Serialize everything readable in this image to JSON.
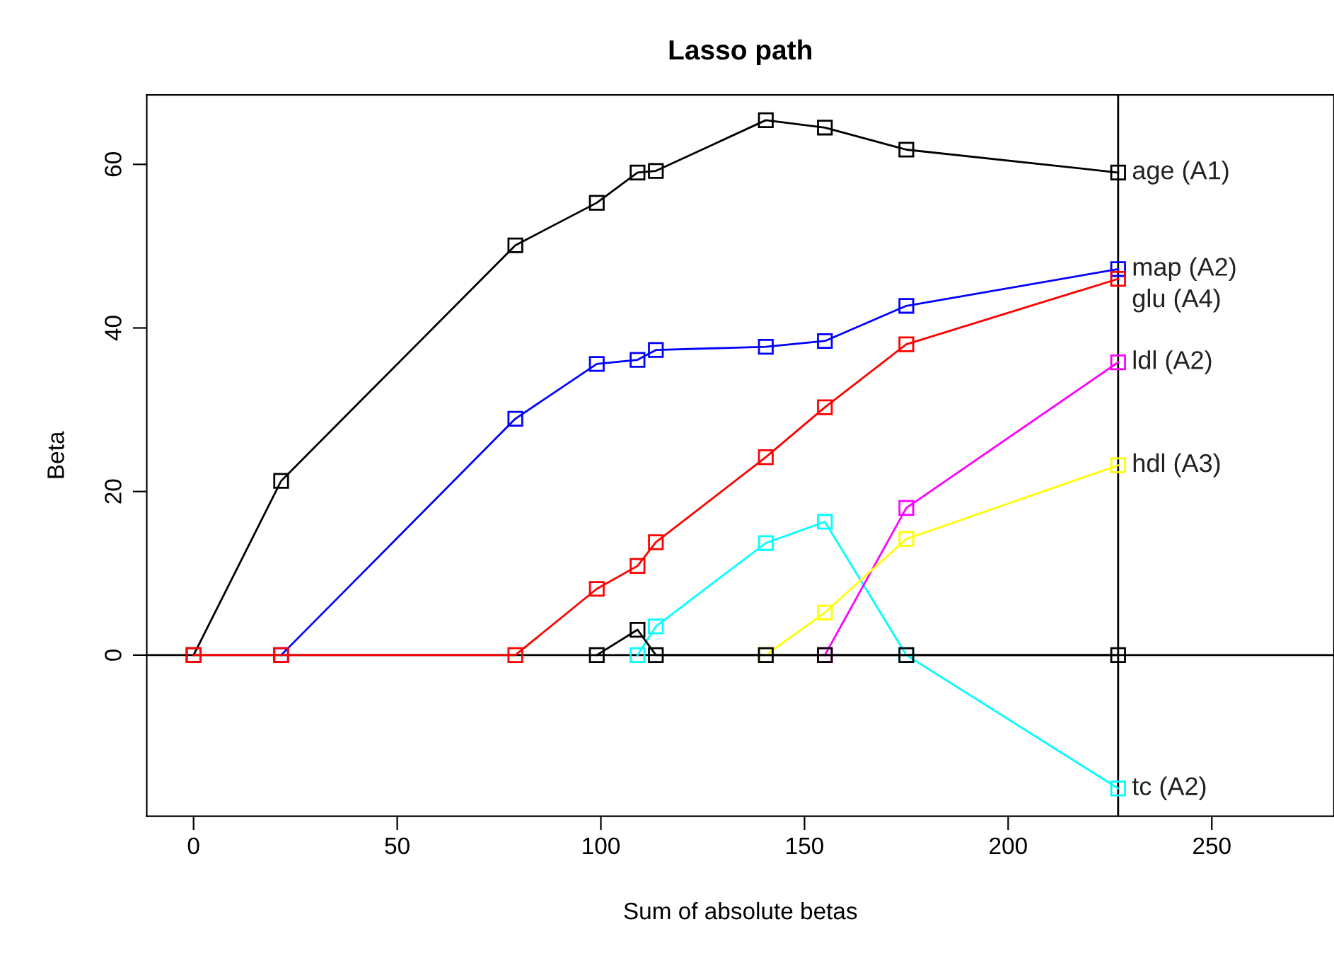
{
  "chart_data": {
    "type": "line",
    "title": "Lasso path",
    "xlabel": "Sum of absolute betas",
    "ylabel": "Beta",
    "x": [
      0,
      21.5,
      79,
      99,
      109,
      113.5,
      140.5,
      155,
      175,
      227
    ],
    "series": [
      {
        "name": "age (A1)",
        "color": "#000000",
        "values": [
          0,
          21.3,
          50.1,
          55.3,
          59.0,
          59.2,
          65.4,
          64.5,
          61.8,
          59.0
        ]
      },
      {
        "name": "map (A2)",
        "color": "#0000ff",
        "values": [
          null,
          0,
          28.9,
          35.6,
          36.1,
          37.3,
          37.7,
          38.4,
          42.7,
          47.2
        ]
      },
      {
        "name": "glu (A4)",
        "color": "#ff0000",
        "values": [
          0,
          0,
          0,
          8.1,
          10.9,
          13.8,
          24.2,
          30.3,
          38.0,
          46.0
        ]
      },
      {
        "name": "tc (A2)",
        "color": "#00ffff",
        "values": [
          null,
          null,
          null,
          null,
          0,
          3.5,
          13.7,
          16.3,
          0,
          -16.3
        ]
      },
      {
        "name": "ldl (A2)",
        "color": "#ff00ff",
        "values": [
          null,
          null,
          null,
          null,
          null,
          null,
          null,
          0,
          18.0,
          35.8
        ]
      },
      {
        "name": "hdl (A3)",
        "color": "#ffff00",
        "values": [
          null,
          null,
          null,
          null,
          null,
          null,
          0,
          5.2,
          14.2,
          23.2
        ]
      },
      {
        "color": "#000000",
        "values": [
          null,
          null,
          null,
          0,
          3.1,
          0,
          0,
          0,
          0,
          0
        ]
      }
    ],
    "xlim": [
      -11.5,
      280
    ],
    "ylim": [
      -19.7,
      68.5
    ],
    "xticks": [
      0,
      50,
      100,
      150,
      200,
      250
    ],
    "yticks": [
      0,
      20,
      40,
      60
    ],
    "ref_lines": [
      {
        "axis": "x",
        "value": 227,
        "color": "#000000"
      },
      {
        "axis": "y",
        "value": 0,
        "color": "#000000"
      }
    ],
    "marker": "square",
    "line_style": "solid",
    "grid": false,
    "legend": false
  }
}
